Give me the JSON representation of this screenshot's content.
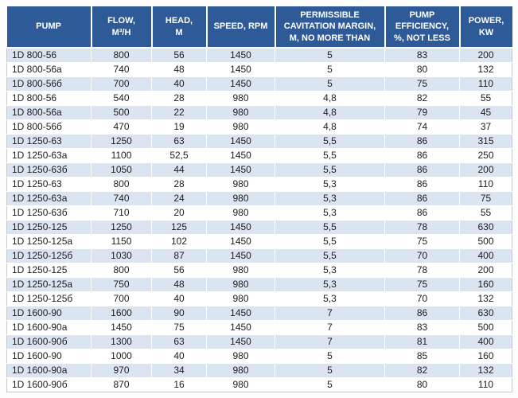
{
  "colors": {
    "header_bg": "#2E5B97",
    "header_text": "#FFFFFF",
    "row_alt_bg": "#DBE5F1",
    "row_bg": "#FFFFFF",
    "body_text": "#1C1C1C",
    "table_outer_border": "#C9C9C9"
  },
  "table": {
    "columns": [
      {
        "id": "pump",
        "label": "PUMP"
      },
      {
        "id": "flow",
        "label": "FLOW,\nM³/H"
      },
      {
        "id": "head",
        "label": "HEAD,\nM"
      },
      {
        "id": "speed",
        "label": "SPEED, RPM"
      },
      {
        "id": "cavitation",
        "label": "PERMISSIBLE\nCAVITATION MARGIN,\nM, NO MORE THAN"
      },
      {
        "id": "efficiency",
        "label": "PUMP\nEFFICIENCY,\n%, NOT LESS"
      },
      {
        "id": "power",
        "label": "POWER,\nKW"
      }
    ],
    "rows": [
      [
        "1D 800-56",
        "800",
        "56",
        "1450",
        "5",
        "83",
        "200"
      ],
      [
        "1D 800-56a",
        "740",
        "48",
        "1450",
        "5",
        "80",
        "132"
      ],
      [
        "1D 800-56б",
        "700",
        "40",
        "1450",
        "5",
        "75",
        "110"
      ],
      [
        "1D 800-56",
        "540",
        "28",
        "980",
        "4,8",
        "82",
        "55"
      ],
      [
        "1D 800-56a",
        "500",
        "22",
        "980",
        "4,8",
        "79",
        "45"
      ],
      [
        "1D 800-56б",
        "470",
        "19",
        "980",
        "4,8",
        "74",
        "37"
      ],
      [
        "1D 1250-63",
        "1250",
        "63",
        "1450",
        "5,5",
        "86",
        "315"
      ],
      [
        "1D 1250-63a",
        "1100",
        "52,5",
        "1450",
        "5,5",
        "86",
        "250"
      ],
      [
        "1D 1250-63б",
        "1050",
        "44",
        "1450",
        "5,5",
        "86",
        "200"
      ],
      [
        "1D 1250-63",
        "800",
        "28",
        "980",
        "5,3",
        "86",
        "110"
      ],
      [
        "1D 1250-63a",
        "740",
        "24",
        "980",
        "5,3",
        "86",
        "75"
      ],
      [
        "1D 1250-63б",
        "710",
        "20",
        "980",
        "5,3",
        "86",
        "55"
      ],
      [
        "1D 1250-125",
        "1250",
        "125",
        "1450",
        "5,5",
        "78",
        "630"
      ],
      [
        "1D 1250-125a",
        "1150",
        "102",
        "1450",
        "5,5",
        "75",
        "500"
      ],
      [
        "1D 1250-125б",
        "1030",
        "87",
        "1450",
        "5,5",
        "70",
        "400"
      ],
      [
        "1D 1250-125",
        "800",
        "56",
        "980",
        "5,3",
        "78",
        "200"
      ],
      [
        "1D 1250-125a",
        "750",
        "48",
        "980",
        "5,3",
        "75",
        "160"
      ],
      [
        "1D 1250-125б",
        "700",
        "40",
        "980",
        "5,3",
        "70",
        "132"
      ],
      [
        "1D 1600-90",
        "1600",
        "90",
        "1450",
        "7",
        "86",
        "630"
      ],
      [
        "1D 1600-90a",
        "1450",
        "75",
        "1450",
        "7",
        "83",
        "500"
      ],
      [
        "1D 1600-90б",
        "1300",
        "63",
        "1450",
        "7",
        "81",
        "400"
      ],
      [
        "1D 1600-90",
        "1000",
        "40",
        "980",
        "5",
        "85",
        "160"
      ],
      [
        "1D 1600-90a",
        "970",
        "34",
        "980",
        "5",
        "82",
        "132"
      ],
      [
        "1D 1600-90б",
        "870",
        "16",
        "980",
        "5",
        "80",
        "110"
      ]
    ]
  }
}
